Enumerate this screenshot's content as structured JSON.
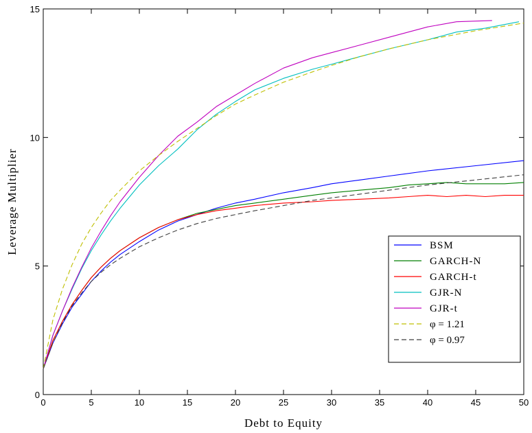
{
  "chart_data": {
    "type": "line",
    "xlabel": "Debt to Equity",
    "ylabel": "Leverage Multiplier",
    "xlim": [
      0,
      50
    ],
    "ylim": [
      0,
      15
    ],
    "xticks": [
      "0",
      "5",
      "10",
      "15",
      "20",
      "25",
      "30",
      "35",
      "40",
      "45",
      "50"
    ],
    "yticks": [
      "0",
      "5",
      "10",
      "15"
    ],
    "grid": false,
    "legend_position": "bottom-right",
    "series": [
      {
        "name": "BSM",
        "color": "#0000ff",
        "dash": "solid",
        "x": [
          0,
          1,
          2,
          3,
          4,
          5,
          6,
          7,
          8,
          10,
          12,
          14,
          16,
          18,
          20,
          22,
          25,
          28,
          30,
          33,
          36,
          40,
          45,
          50
        ],
        "y": [
          1.0,
          2.0,
          2.75,
          3.4,
          3.9,
          4.4,
          4.8,
          5.15,
          5.45,
          5.95,
          6.4,
          6.75,
          7.0,
          7.25,
          7.45,
          7.6,
          7.85,
          8.05,
          8.2,
          8.35,
          8.5,
          8.7,
          8.9,
          9.1
        ]
      },
      {
        "name": "GARCH-N",
        "color": "#007f00",
        "dash": "solid",
        "x": [
          0,
          1,
          2,
          3,
          4,
          5,
          6,
          7,
          8,
          10,
          12,
          14,
          16,
          18,
          20,
          22,
          25,
          28,
          30,
          33,
          36,
          38,
          40,
          42,
          44,
          46,
          48,
          50
        ],
        "y": [
          1.0,
          2.1,
          2.85,
          3.5,
          4.05,
          4.55,
          4.95,
          5.3,
          5.6,
          6.1,
          6.5,
          6.8,
          7.05,
          7.2,
          7.35,
          7.45,
          7.6,
          7.75,
          7.85,
          7.95,
          8.05,
          8.15,
          8.2,
          8.25,
          8.2,
          8.2,
          8.2,
          8.25
        ]
      },
      {
        "name": "GARCH-t",
        "color": "#ff0000",
        "dash": "solid",
        "x": [
          0,
          1,
          2,
          3,
          4,
          5,
          6,
          7,
          8,
          10,
          12,
          14,
          16,
          18,
          20,
          22,
          25,
          28,
          30,
          33,
          36,
          38,
          40,
          42,
          44,
          46,
          48,
          50
        ],
        "y": [
          1.0,
          2.1,
          2.85,
          3.5,
          4.05,
          4.55,
          4.95,
          5.3,
          5.6,
          6.1,
          6.5,
          6.8,
          7.0,
          7.15,
          7.25,
          7.35,
          7.45,
          7.5,
          7.55,
          7.6,
          7.65,
          7.7,
          7.75,
          7.7,
          7.75,
          7.7,
          7.75,
          7.75
        ]
      },
      {
        "name": "GJR-N",
        "color": "#00bfbf",
        "dash": "solid",
        "x": [
          0,
          1,
          2,
          3,
          4,
          5,
          6,
          7,
          8,
          10,
          12,
          14,
          16,
          18,
          20,
          22,
          25,
          28,
          30,
          33,
          36,
          40,
          43,
          46,
          49.5
        ],
        "y": [
          1.0,
          2.3,
          3.25,
          4.1,
          4.9,
          5.6,
          6.2,
          6.75,
          7.25,
          8.15,
          8.9,
          9.55,
          10.3,
          10.9,
          11.4,
          11.85,
          12.3,
          12.65,
          12.85,
          13.15,
          13.45,
          13.8,
          14.1,
          14.25,
          14.5
        ]
      },
      {
        "name": "GJR-t",
        "color": "#bf00bf",
        "dash": "solid",
        "x": [
          0,
          1,
          2,
          3,
          4,
          5,
          6,
          7,
          8,
          10,
          12,
          14,
          16,
          18,
          20,
          22,
          25,
          28,
          30,
          33,
          36,
          40,
          43,
          46.7
        ],
        "y": [
          1.0,
          2.3,
          3.25,
          4.15,
          4.95,
          5.7,
          6.35,
          6.95,
          7.5,
          8.45,
          9.3,
          10.05,
          10.6,
          11.2,
          11.65,
          12.1,
          12.7,
          13.1,
          13.3,
          13.6,
          13.9,
          14.3,
          14.5,
          14.55
        ]
      },
      {
        "name": "φ = 1.21",
        "color": "#bfbf00",
        "dash": "dashed",
        "x": [
          0,
          1,
          2,
          3,
          4,
          5,
          6,
          7,
          8,
          10,
          12,
          14,
          16,
          18,
          20,
          22,
          25,
          28,
          30,
          33,
          36,
          40,
          45,
          50
        ],
        "y": [
          1.0,
          2.9,
          4.1,
          5.05,
          5.85,
          6.5,
          7.05,
          7.55,
          7.95,
          8.7,
          9.3,
          9.85,
          10.35,
          10.85,
          11.3,
          11.65,
          12.15,
          12.55,
          12.8,
          13.15,
          13.45,
          13.8,
          14.15,
          14.45
        ]
      },
      {
        "name": "φ = 0.97",
        "color": "#3f3f3f",
        "dash": "dashed",
        "x": [
          0,
          1,
          2,
          3,
          4,
          5,
          6,
          7,
          8,
          10,
          12,
          14,
          16,
          18,
          20,
          22,
          25,
          28,
          30,
          33,
          36,
          40,
          45,
          50
        ],
        "y": [
          1.0,
          2.0,
          2.8,
          3.45,
          3.95,
          4.4,
          4.75,
          5.05,
          5.3,
          5.75,
          6.1,
          6.4,
          6.65,
          6.85,
          7.0,
          7.15,
          7.35,
          7.55,
          7.65,
          7.8,
          7.95,
          8.15,
          8.35,
          8.55
        ]
      }
    ]
  }
}
